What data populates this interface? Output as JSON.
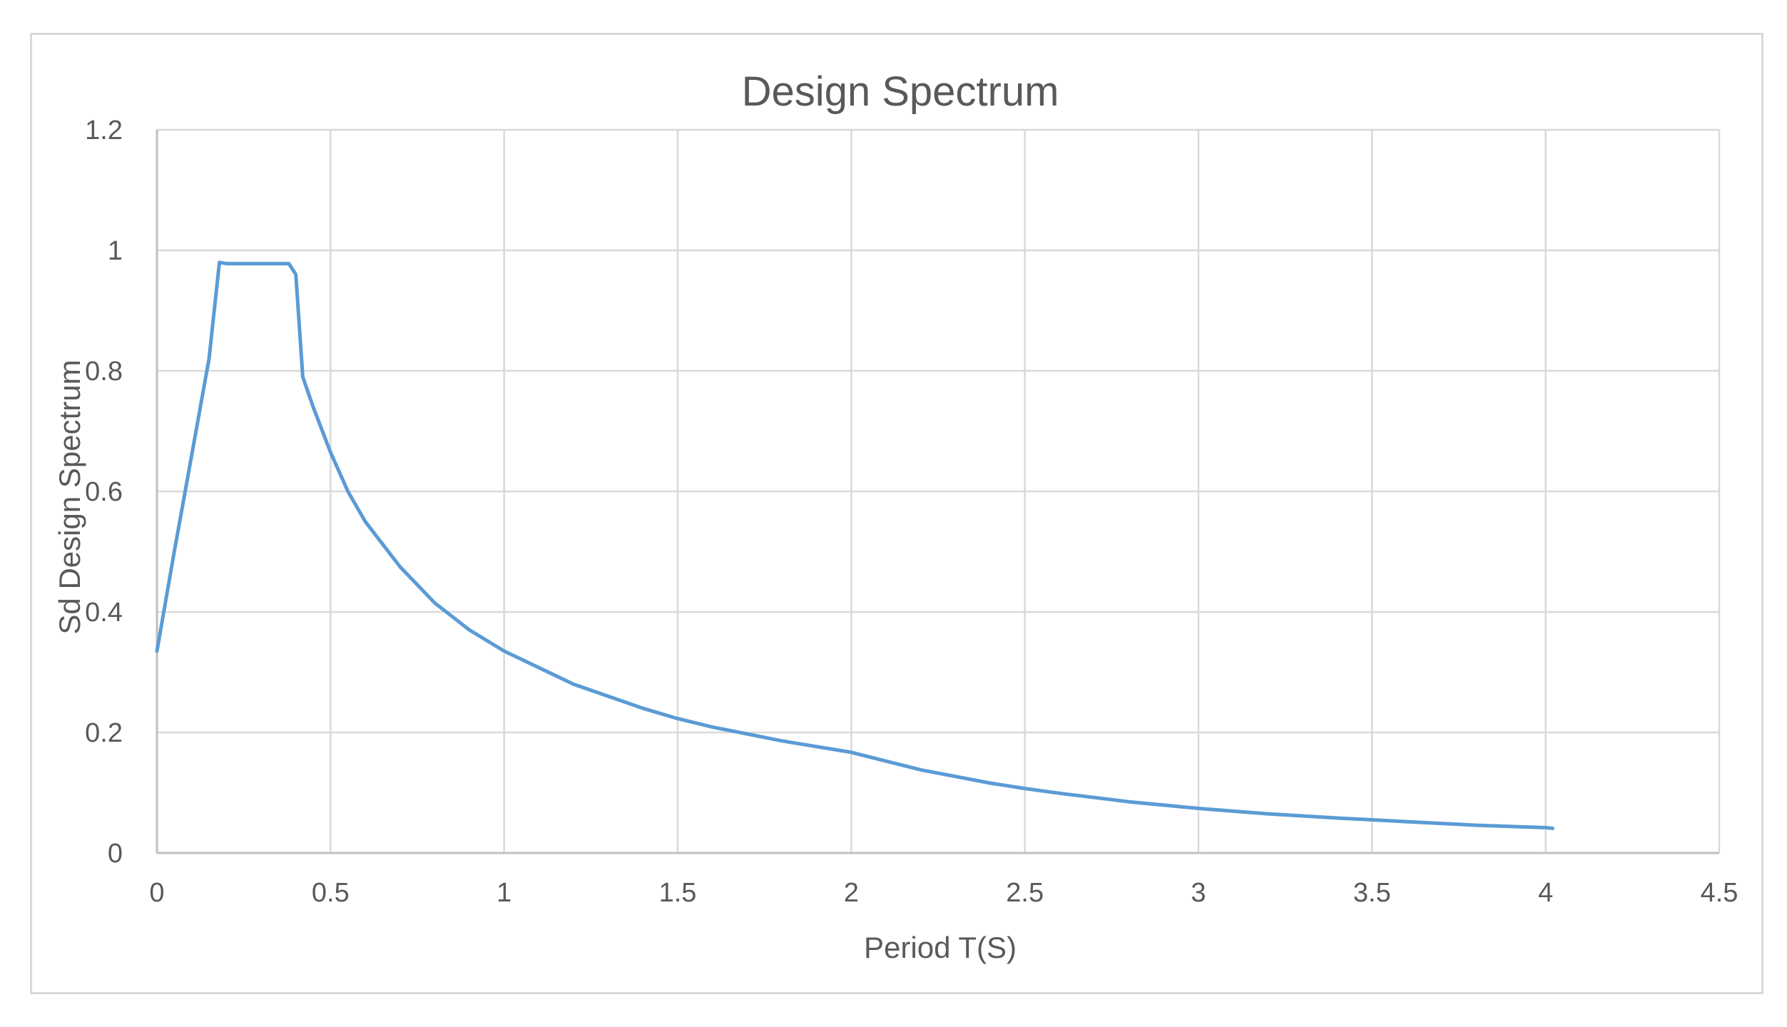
{
  "chart_data": {
    "type": "line",
    "title": "Design Spectrum",
    "xlabel": "Period T(S)",
    "ylabel": "Sd Design Spectrum",
    "xlim": [
      0,
      4.5
    ],
    "ylim": [
      0,
      1.2
    ],
    "xticks": [
      0,
      0.5,
      1,
      1.5,
      2,
      2.5,
      3,
      3.5,
      4,
      4.5
    ],
    "yticks": [
      0,
      0.2,
      0.4,
      0.6,
      0.8,
      1,
      1.2
    ],
    "xtick_labels": [
      "0",
      "0.5",
      "1",
      "1.5",
      "2",
      "2.5",
      "3",
      "3.5",
      "4",
      "4.5"
    ],
    "ytick_labels": [
      "0",
      "0.2",
      "0.4",
      "0.6",
      "0.8",
      "1",
      "1.2"
    ],
    "grid": true,
    "legend": "none",
    "series": [
      {
        "color": "#5b9bd5",
        "x": [
          0,
          0.05,
          0.1,
          0.15,
          0.18,
          0.2,
          0.25,
          0.3,
          0.35,
          0.38,
          0.4,
          0.42,
          0.45,
          0.5,
          0.55,
          0.6,
          0.7,
          0.8,
          0.9,
          1.0,
          1.2,
          1.4,
          1.5,
          1.6,
          1.8,
          2.0,
          2.2,
          2.4,
          2.5,
          2.6,
          2.8,
          3.0,
          3.2,
          3.4,
          3.5,
          3.6,
          3.8,
          4.0,
          4.02
        ],
        "y": [
          0.335,
          0.5,
          0.66,
          0.82,
          0.98,
          0.978,
          0.978,
          0.978,
          0.978,
          0.978,
          0.96,
          0.79,
          0.74,
          0.665,
          0.6,
          0.55,
          0.475,
          0.415,
          0.37,
          0.335,
          0.28,
          0.24,
          0.223,
          0.209,
          0.186,
          0.167,
          0.138,
          0.116,
          0.107,
          0.099,
          0.085,
          0.074,
          0.065,
          0.058,
          0.055,
          0.052,
          0.046,
          0.042,
          0.041
        ]
      }
    ]
  }
}
